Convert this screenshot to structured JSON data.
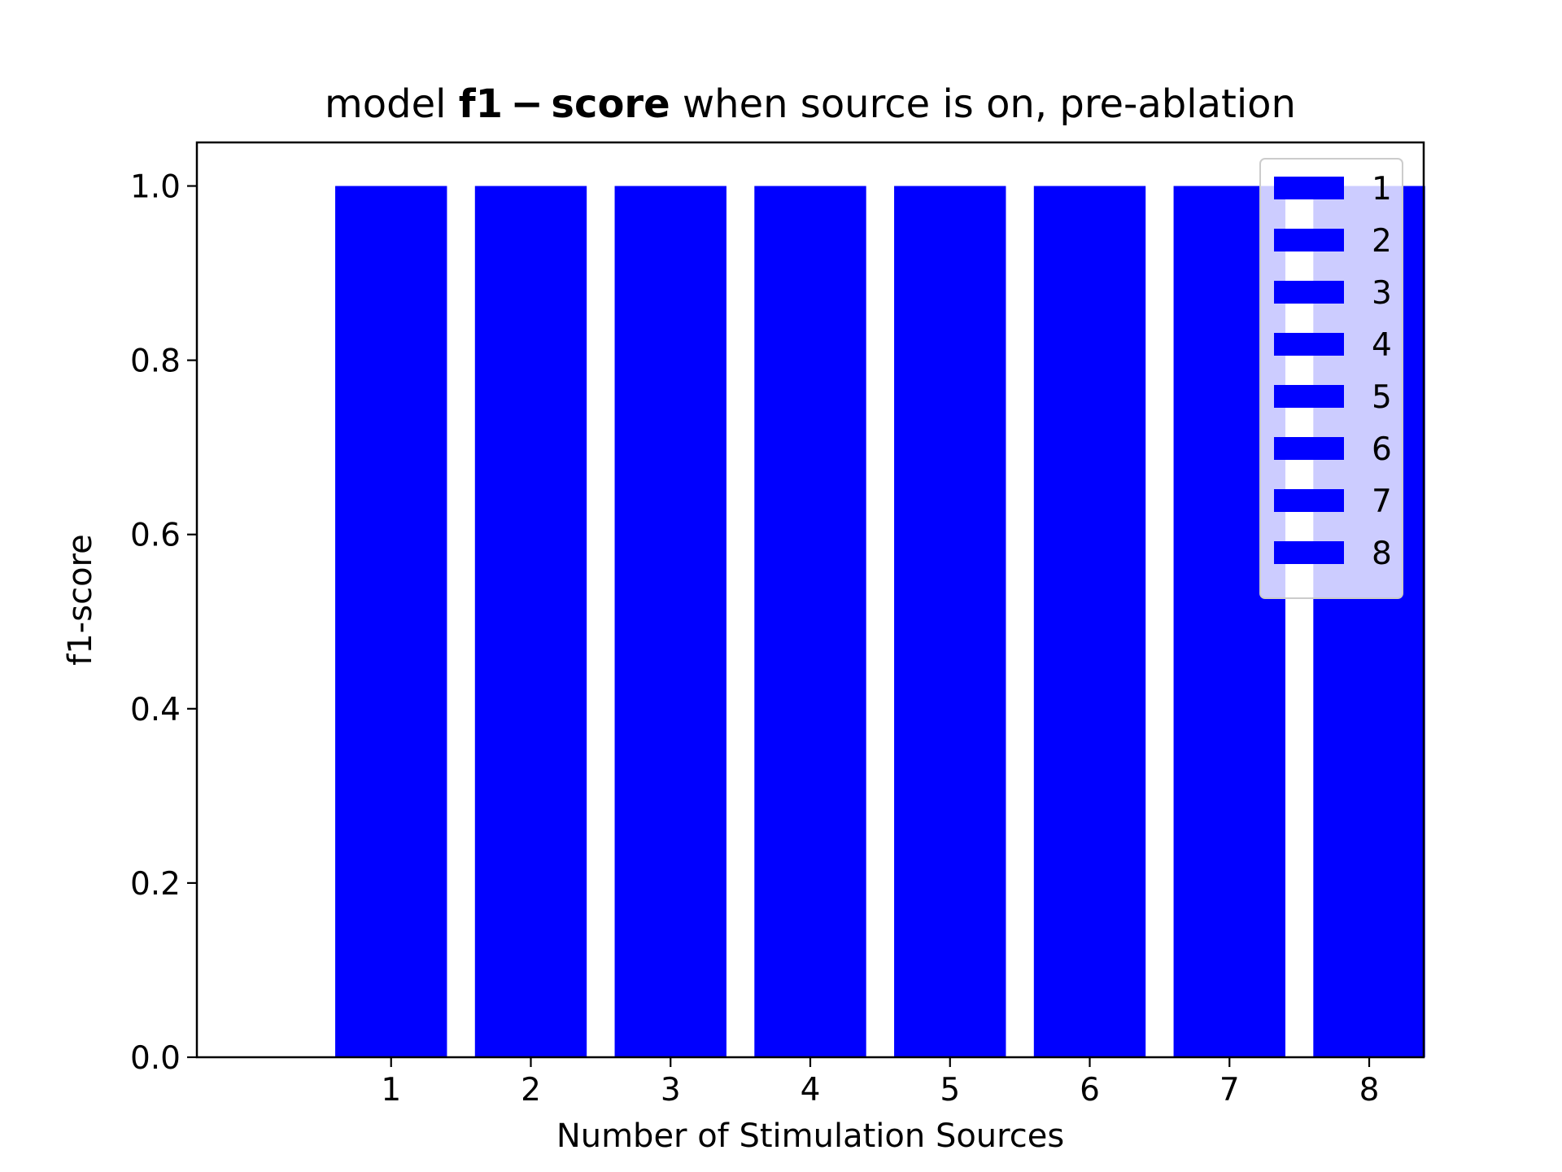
{
  "chart_data": {
    "type": "bar",
    "title": {
      "prefix": "model ",
      "bold": "f1 − score",
      "suffix": " when source is on, pre-ablation"
    },
    "xlabel": "Number of Stimulation Sources",
    "ylabel": "f1-score",
    "categories": [
      "1",
      "2",
      "3",
      "4",
      "5",
      "6",
      "7",
      "8"
    ],
    "values": [
      1.0,
      1.0,
      1.0,
      1.0,
      1.0,
      1.0,
      1.0,
      1.0
    ],
    "ylim": [
      0,
      1.05
    ],
    "yticks": [
      "0.0",
      "0.2",
      "0.4",
      "0.6",
      "0.8",
      "1.0"
    ],
    "legend": {
      "entries": [
        "1",
        "2",
        "3",
        "4",
        "5",
        "6",
        "7",
        "8"
      ],
      "position": "top-right"
    },
    "grid": false,
    "bar_color": "#0000ff"
  }
}
